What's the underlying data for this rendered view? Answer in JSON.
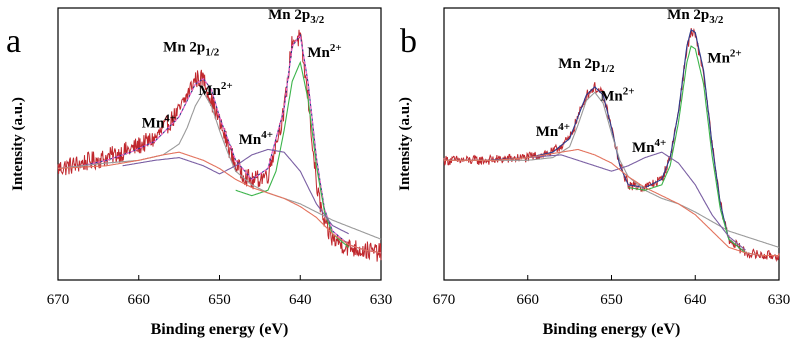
{
  "chart_data": [
    {
      "type": "line",
      "panel": "a",
      "xlabel": "Binding energy (eV)",
      "ylabel": "Intensity (a.u.)",
      "xlim": [
        670,
        630
      ],
      "x_reversed": true,
      "xticks": [
        "670",
        "660",
        "650",
        "640",
        "630"
      ],
      "annotations": [
        {
          "main": "Mn 2p",
          "sub": "1/2",
          "x": 653.5,
          "y": 0.84
        },
        {
          "main": "Mn 2p",
          "sub": "3/2",
          "x": 640.5,
          "y": 0.96
        },
        {
          "main": "Mn",
          "sup": "2+",
          "x": 650.5,
          "y": 0.68
        },
        {
          "main": "Mn",
          "sup": "2+",
          "x": 637.0,
          "y": 0.82
        },
        {
          "main": "Mn",
          "sup": "4+",
          "x": 657.5,
          "y": 0.56
        },
        {
          "main": "Mn",
          "sup": "4+",
          "x": 645.5,
          "y": 0.5
        }
      ],
      "series": [
        {
          "color": "#c0272d",
          "noise": 0.035,
          "x": [
            670,
            667,
            664,
            661,
            658,
            655,
            653,
            652,
            650,
            648,
            646,
            644,
            642,
            641,
            640,
            639,
            638,
            637,
            636,
            634,
            632,
            630
          ],
          "values": [
            0.41,
            0.43,
            0.45,
            0.48,
            0.52,
            0.62,
            0.74,
            0.74,
            0.58,
            0.42,
            0.36,
            0.39,
            0.62,
            0.88,
            0.89,
            0.66,
            0.35,
            0.2,
            0.15,
            0.12,
            0.11,
            0.1
          ]
        },
        {
          "color": "#2b3a8c",
          "noise": 0,
          "x": [
            670,
            667,
            664,
            661,
            658,
            655,
            653,
            652,
            651,
            650,
            648,
            646,
            644,
            642,
            641,
            640,
            639,
            638,
            637,
            636,
            634,
            632,
            630
          ],
          "values": [
            0.41,
            0.42,
            0.44,
            0.47,
            0.51,
            0.6,
            0.72,
            0.74,
            0.7,
            0.6,
            0.44,
            0.37,
            0.41,
            0.63,
            0.86,
            0.9,
            0.72,
            0.45,
            0.26,
            0.18,
            0.13,
            0.11,
            0.1
          ]
        },
        {
          "color": "#ff66cc",
          "noise": 0,
          "x": [
            670,
            667,
            664,
            661,
            658,
            655,
            653,
            652,
            651,
            650,
            648,
            646,
            644,
            642,
            641,
            640,
            639,
            638,
            637,
            636,
            634,
            632,
            630
          ],
          "values": [
            0.41,
            0.42,
            0.44,
            0.47,
            0.51,
            0.6,
            0.72,
            0.74,
            0.7,
            0.6,
            0.44,
            0.37,
            0.41,
            0.63,
            0.86,
            0.9,
            0.72,
            0.45,
            0.26,
            0.18,
            0.13,
            0.11,
            0.1
          ]
        },
        {
          "color": "#9a9a9a",
          "noise": 0,
          "x": [
            670,
            664,
            660,
            657,
            655,
            654,
            653,
            652,
            651,
            650,
            649,
            648,
            646,
            644,
            642,
            640,
            636,
            630
          ],
          "values": [
            0.41,
            0.43,
            0.44,
            0.46,
            0.5,
            0.56,
            0.64,
            0.69,
            0.64,
            0.55,
            0.47,
            0.4,
            0.35,
            0.32,
            0.3,
            0.28,
            0.22,
            0.15
          ]
        },
        {
          "color": "#3cb44b",
          "noise": 0,
          "x": [
            648,
            646,
            644,
            643,
            642,
            641,
            640,
            639,
            638,
            637,
            636,
            634
          ],
          "values": [
            0.33,
            0.31,
            0.33,
            0.4,
            0.55,
            0.73,
            0.8,
            0.66,
            0.42,
            0.25,
            0.17,
            0.12
          ]
        },
        {
          "color": "#7a5fa3",
          "noise": 0,
          "x": [
            662,
            658,
            655,
            652,
            650,
            648,
            646,
            644,
            642,
            640,
            638,
            636,
            634
          ],
          "values": [
            0.42,
            0.44,
            0.45,
            0.42,
            0.39,
            0.42,
            0.46,
            0.48,
            0.47,
            0.4,
            0.28,
            0.2,
            0.17
          ]
        },
        {
          "color": "#e3735e",
          "noise": 0,
          "x": [
            670,
            664,
            660,
            657,
            655,
            652,
            650,
            648,
            646,
            644,
            642,
            640,
            638,
            636,
            634,
            632,
            630
          ],
          "values": [
            0.41,
            0.42,
            0.44,
            0.46,
            0.47,
            0.44,
            0.41,
            0.37,
            0.34,
            0.32,
            0.3,
            0.27,
            0.23,
            0.17,
            0.13,
            0.11,
            0.1
          ]
        }
      ]
    },
    {
      "type": "line",
      "panel": "b",
      "xlabel": "Binding energy (eV)",
      "ylabel": "Intensity (a.u.)",
      "xlim": [
        670,
        630
      ],
      "x_reversed": true,
      "xticks": [
        "670",
        "660",
        "650",
        "640",
        "630"
      ],
      "annotations": [
        {
          "main": "Mn 2p",
          "sub": "1/2",
          "x": 653.0,
          "y": 0.78
        },
        {
          "main": "Mn 2p",
          "sub": "3/2",
          "x": 640.0,
          "y": 0.96
        },
        {
          "main": "Mn",
          "sup": "2+",
          "x": 649.3,
          "y": 0.66
        },
        {
          "main": "Mn",
          "sup": "2+",
          "x": 636.5,
          "y": 0.8
        },
        {
          "main": "Mn",
          "sup": "4+",
          "x": 657.0,
          "y": 0.53
        },
        {
          "main": "Mn",
          "sup": "4+",
          "x": 645.5,
          "y": 0.47
        }
      ],
      "series": [
        {
          "color": "#c0272d",
          "noise": 0.018,
          "x": [
            670,
            665,
            660,
            657,
            655,
            654,
            653,
            652,
            651,
            650,
            649,
            648,
            646,
            644,
            643,
            642,
            641,
            640.5,
            640,
            639,
            638,
            637,
            636,
            634,
            632,
            630
          ],
          "values": [
            0.44,
            0.44,
            0.45,
            0.47,
            0.52,
            0.6,
            0.68,
            0.71,
            0.68,
            0.56,
            0.42,
            0.35,
            0.34,
            0.37,
            0.45,
            0.62,
            0.85,
            0.91,
            0.9,
            0.76,
            0.5,
            0.28,
            0.15,
            0.1,
            0.09,
            0.09
          ]
        },
        {
          "color": "#2b3a8c",
          "noise": 0,
          "x": [
            670,
            665,
            660,
            657,
            655,
            654,
            653,
            652,
            651,
            650,
            649,
            648,
            646,
            644,
            643,
            642,
            641,
            640.5,
            640,
            639,
            638,
            637,
            636,
            634,
            632,
            630
          ],
          "values": [
            0.44,
            0.44,
            0.45,
            0.47,
            0.52,
            0.6,
            0.68,
            0.71,
            0.68,
            0.56,
            0.42,
            0.35,
            0.34,
            0.37,
            0.45,
            0.62,
            0.86,
            0.92,
            0.91,
            0.77,
            0.5,
            0.28,
            0.15,
            0.1,
            0.09,
            0.09
          ]
        },
        {
          "color": "#9a9a9a",
          "noise": 0,
          "x": [
            670,
            660,
            657,
            655,
            654,
            653,
            652,
            651,
            650,
            649,
            648,
            646,
            644,
            642,
            640,
            636,
            630
          ],
          "values": [
            0.44,
            0.44,
            0.45,
            0.49,
            0.57,
            0.66,
            0.69,
            0.65,
            0.54,
            0.44,
            0.38,
            0.33,
            0.3,
            0.28,
            0.25,
            0.18,
            0.12
          ]
        },
        {
          "color": "#3cb44b",
          "noise": 0,
          "x": [
            648,
            646,
            644,
            643,
            642,
            641,
            640.5,
            640,
            639,
            638,
            637,
            636,
            634
          ],
          "values": [
            0.34,
            0.33,
            0.35,
            0.42,
            0.58,
            0.8,
            0.86,
            0.85,
            0.72,
            0.46,
            0.26,
            0.15,
            0.1
          ]
        },
        {
          "color": "#7a5fa3",
          "noise": 0,
          "x": [
            660,
            656,
            653,
            650,
            648,
            646,
            644,
            642,
            640,
            638,
            636,
            634
          ],
          "values": [
            0.45,
            0.46,
            0.43,
            0.4,
            0.42,
            0.45,
            0.47,
            0.43,
            0.35,
            0.24,
            0.16,
            0.11
          ]
        },
        {
          "color": "#e3735e",
          "noise": 0,
          "x": [
            670,
            664,
            660,
            656,
            654,
            652,
            650,
            648,
            646,
            644,
            642,
            640,
            638,
            636,
            634,
            632,
            630
          ],
          "values": [
            0.44,
            0.44,
            0.45,
            0.47,
            0.48,
            0.46,
            0.43,
            0.38,
            0.34,
            0.31,
            0.28,
            0.24,
            0.18,
            0.12,
            0.1,
            0.09,
            0.09
          ]
        }
      ]
    }
  ]
}
